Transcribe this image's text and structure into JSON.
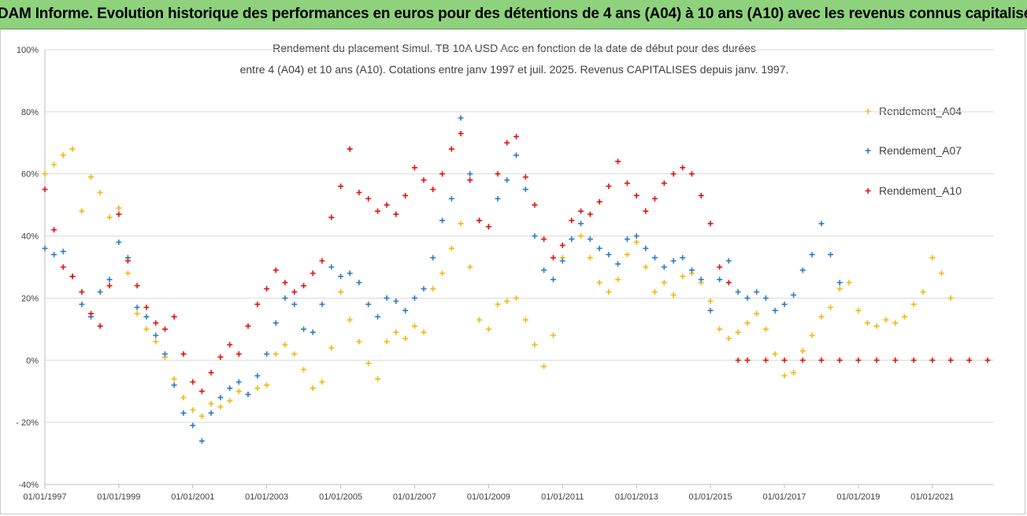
{
  "header": {
    "banner": "ADAM Informe. Evolution historique des performances en euros pour des détentions de 4 ans (A04) à 10 ans (A10) avec les revenus connus capitalisés"
  },
  "chart_data": {
    "type": "scatter",
    "title_line1": "Rendement du placement Simul. TB 10A USD Acc en fonction de la date de début pour des durées",
    "title_line2": "entre 4 (A04) et 10 ans (A10). Cotations entre janv 1997 et juil. 2025. Revenus CAPITALISES depuis janv. 1997.",
    "xlabel": "",
    "ylabel": "",
    "x_ticks": [
      "01/01/1997",
      "01/01/1999",
      "01/01/2001",
      "01/01/2003",
      "01/01/2005",
      "01/01/2007",
      "01/01/2009",
      "01/01/2011",
      "01/01/2013",
      "01/01/2015",
      "01/01/2017",
      "01/01/2019",
      "01/01/2021"
    ],
    "y_ticks": [
      "100%",
      "80%",
      "60%",
      "40%",
      "20%",
      "0%",
      "- 20%",
      "-40%"
    ],
    "xlim": [
      "1997-01-01",
      "2022-09-01"
    ],
    "ylim": [
      -40,
      100
    ],
    "grid": "horizontal",
    "legend_position": "right",
    "marker": "+",
    "series": [
      {
        "name": "Rendement_A04",
        "color": "#f5b70f",
        "points": [
          [
            "1997-01",
            60
          ],
          [
            "1997-04",
            63
          ],
          [
            "1997-07",
            66
          ],
          [
            "1997-10",
            68
          ],
          [
            "1998-01",
            48
          ],
          [
            "1998-04",
            59
          ],
          [
            "1998-07",
            54
          ],
          [
            "1998-10",
            46
          ],
          [
            "1999-01",
            49
          ],
          [
            "1999-04",
            28
          ],
          [
            "1999-07",
            15
          ],
          [
            "1999-10",
            10
          ],
          [
            "2000-01",
            6
          ],
          [
            "2000-04",
            1
          ],
          [
            "2000-07",
            -6
          ],
          [
            "2000-10",
            -12
          ],
          [
            "2001-01",
            -16
          ],
          [
            "2001-04",
            -18
          ],
          [
            "2001-07",
            -14
          ],
          [
            "2001-10",
            -15
          ],
          [
            "2002-01",
            -13
          ],
          [
            "2002-04",
            -10
          ],
          [
            "2002-07",
            -11
          ],
          [
            "2002-10",
            -9
          ],
          [
            "2003-01",
            -8
          ],
          [
            "2003-04",
            2
          ],
          [
            "2003-07",
            5
          ],
          [
            "2003-10",
            2
          ],
          [
            "2004-01",
            -3
          ],
          [
            "2004-04",
            -9
          ],
          [
            "2004-07",
            -7
          ],
          [
            "2004-10",
            4
          ],
          [
            "2005-01",
            22
          ],
          [
            "2005-04",
            13
          ],
          [
            "2005-07",
            6
          ],
          [
            "2005-10",
            -1
          ],
          [
            "2006-01",
            -6
          ],
          [
            "2006-04",
            6
          ],
          [
            "2006-07",
            9
          ],
          [
            "2006-10",
            7
          ],
          [
            "2007-01",
            11
          ],
          [
            "2007-04",
            9
          ],
          [
            "2007-07",
            23
          ],
          [
            "2007-10",
            28
          ],
          [
            "2008-01",
            36
          ],
          [
            "2008-04",
            44
          ],
          [
            "2008-07",
            30
          ],
          [
            "2008-10",
            13
          ],
          [
            "2009-01",
            10
          ],
          [
            "2009-04",
            18
          ],
          [
            "2009-07",
            19
          ],
          [
            "2009-10",
            20
          ],
          [
            "2010-01",
            13
          ],
          [
            "2010-04",
            5
          ],
          [
            "2010-07",
            -2
          ],
          [
            "2010-10",
            8
          ],
          [
            "2011-01",
            33
          ],
          [
            "2011-04",
            39
          ],
          [
            "2011-07",
            40
          ],
          [
            "2011-10",
            33
          ],
          [
            "2012-01",
            25
          ],
          [
            "2012-04",
            22
          ],
          [
            "2012-07",
            26
          ],
          [
            "2012-10",
            34
          ],
          [
            "2013-01",
            38
          ],
          [
            "2013-04",
            30
          ],
          [
            "2013-07",
            22
          ],
          [
            "2013-10",
            25
          ],
          [
            "2014-01",
            21
          ],
          [
            "2014-04",
            27
          ],
          [
            "2014-07",
            28
          ],
          [
            "2014-10",
            25
          ],
          [
            "2015-01",
            19
          ],
          [
            "2015-04",
            10
          ],
          [
            "2015-07",
            7
          ],
          [
            "2015-10",
            9
          ],
          [
            "2016-01",
            12
          ],
          [
            "2016-04",
            15
          ],
          [
            "2016-07",
            10
          ],
          [
            "2016-10",
            2
          ],
          [
            "2017-01",
            -5
          ],
          [
            "2017-04",
            -4
          ],
          [
            "2017-07",
            3
          ],
          [
            "2017-10",
            8
          ],
          [
            "2018-01",
            14
          ],
          [
            "2018-04",
            17
          ],
          [
            "2018-07",
            23
          ],
          [
            "2018-10",
            25
          ],
          [
            "2019-01",
            16
          ],
          [
            "2019-04",
            12
          ],
          [
            "2019-07",
            11
          ],
          [
            "2019-10",
            13
          ],
          [
            "2020-01",
            12
          ],
          [
            "2020-04",
            14
          ],
          [
            "2020-07",
            18
          ],
          [
            "2020-10",
            22
          ],
          [
            "2021-01",
            33
          ],
          [
            "2021-04",
            28
          ],
          [
            "2021-07",
            20
          ]
        ]
      },
      {
        "name": "Rendement_A07",
        "color": "#2e7dc6",
        "points": [
          [
            "1997-01",
            36
          ],
          [
            "1997-04",
            34
          ],
          [
            "1997-07",
            35
          ],
          [
            "1997-10",
            27
          ],
          [
            "1998-01",
            18
          ],
          [
            "1998-04",
            14
          ],
          [
            "1998-07",
            22
          ],
          [
            "1998-10",
            26
          ],
          [
            "1999-01",
            38
          ],
          [
            "1999-04",
            33
          ],
          [
            "1999-07",
            17
          ],
          [
            "1999-10",
            14
          ],
          [
            "2000-01",
            8
          ],
          [
            "2000-04",
            2
          ],
          [
            "2000-07",
            -8
          ],
          [
            "2000-10",
            -17
          ],
          [
            "2001-01",
            -21
          ],
          [
            "2001-04",
            -26
          ],
          [
            "2001-07",
            -17
          ],
          [
            "2001-10",
            -12
          ],
          [
            "2002-01",
            -9
          ],
          [
            "2002-04",
            -7
          ],
          [
            "2002-07",
            -11
          ],
          [
            "2002-10",
            -5
          ],
          [
            "2003-01",
            2
          ],
          [
            "2003-04",
            12
          ],
          [
            "2003-07",
            20
          ],
          [
            "2003-10",
            18
          ],
          [
            "2004-01",
            10
          ],
          [
            "2004-04",
            9
          ],
          [
            "2004-07",
            18
          ],
          [
            "2004-10",
            30
          ],
          [
            "2005-01",
            27
          ],
          [
            "2005-04",
            28
          ],
          [
            "2005-07",
            25
          ],
          [
            "2005-10",
            18
          ],
          [
            "2006-01",
            14
          ],
          [
            "2006-04",
            20
          ],
          [
            "2006-07",
            19
          ],
          [
            "2006-10",
            16
          ],
          [
            "2007-01",
            20
          ],
          [
            "2007-04",
            23
          ],
          [
            "2007-07",
            33
          ],
          [
            "2007-10",
            45
          ],
          [
            "2008-01",
            52
          ],
          [
            "2008-04",
            78
          ],
          [
            "2008-07",
            60
          ],
          [
            "2008-10",
            45
          ],
          [
            "2009-01",
            43
          ],
          [
            "2009-04",
            52
          ],
          [
            "2009-07",
            58
          ],
          [
            "2009-10",
            66
          ],
          [
            "2010-01",
            55
          ],
          [
            "2010-04",
            40
          ],
          [
            "2010-07",
            29
          ],
          [
            "2010-10",
            26
          ],
          [
            "2011-01",
            32
          ],
          [
            "2011-04",
            39
          ],
          [
            "2011-07",
            44
          ],
          [
            "2011-10",
            39
          ],
          [
            "2012-01",
            36
          ],
          [
            "2012-04",
            34
          ],
          [
            "2012-07",
            31
          ],
          [
            "2012-10",
            39
          ],
          [
            "2013-01",
            40
          ],
          [
            "2013-04",
            36
          ],
          [
            "2013-07",
            33
          ],
          [
            "2013-10",
            30
          ],
          [
            "2014-01",
            32
          ],
          [
            "2014-04",
            33
          ],
          [
            "2014-07",
            29
          ],
          [
            "2014-10",
            26
          ],
          [
            "2015-01",
            16
          ],
          [
            "2015-04",
            26
          ],
          [
            "2015-07",
            32
          ],
          [
            "2015-10",
            22
          ],
          [
            "2016-01",
            20
          ],
          [
            "2016-04",
            22
          ],
          [
            "2016-07",
            20
          ],
          [
            "2016-10",
            16
          ],
          [
            "2017-01",
            18
          ],
          [
            "2017-04",
            21
          ],
          [
            "2017-07",
            29
          ],
          [
            "2017-10",
            34
          ],
          [
            "2018-01",
            44
          ],
          [
            "2018-04",
            34
          ],
          [
            "2018-07",
            25
          ]
        ]
      },
      {
        "name": "Rendement_A10",
        "color": "#e01414",
        "points": [
          [
            "1997-01",
            55
          ],
          [
            "1997-04",
            42
          ],
          [
            "1997-07",
            30
          ],
          [
            "1997-10",
            27
          ],
          [
            "1998-01",
            22
          ],
          [
            "1998-04",
            15
          ],
          [
            "1998-07",
            11
          ],
          [
            "1998-10",
            24
          ],
          [
            "1999-01",
            47
          ],
          [
            "1999-04",
            32
          ],
          [
            "1999-07",
            24
          ],
          [
            "1999-10",
            17
          ],
          [
            "2000-01",
            12
          ],
          [
            "2000-04",
            10
          ],
          [
            "2000-07",
            14
          ],
          [
            "2000-10",
            2
          ],
          [
            "2001-01",
            -7
          ],
          [
            "2001-04",
            -10
          ],
          [
            "2001-07",
            -4
          ],
          [
            "2001-10",
            1
          ],
          [
            "2002-01",
            5
          ],
          [
            "2002-04",
            2
          ],
          [
            "2002-07",
            11
          ],
          [
            "2002-10",
            18
          ],
          [
            "2003-01",
            23
          ],
          [
            "2003-04",
            29
          ],
          [
            "2003-07",
            25
          ],
          [
            "2003-10",
            22
          ],
          [
            "2004-01",
            24
          ],
          [
            "2004-04",
            28
          ],
          [
            "2004-07",
            32
          ],
          [
            "2004-10",
            46
          ],
          [
            "2005-01",
            56
          ],
          [
            "2005-04",
            68
          ],
          [
            "2005-07",
            54
          ],
          [
            "2005-10",
            52
          ],
          [
            "2006-01",
            48
          ],
          [
            "2006-04",
            50
          ],
          [
            "2006-07",
            47
          ],
          [
            "2006-10",
            53
          ],
          [
            "2007-01",
            62
          ],
          [
            "2007-04",
            58
          ],
          [
            "2007-07",
            55
          ],
          [
            "2007-10",
            60
          ],
          [
            "2008-01",
            68
          ],
          [
            "2008-04",
            73
          ],
          [
            "2008-07",
            58
          ],
          [
            "2008-10",
            45
          ],
          [
            "2009-01",
            43
          ],
          [
            "2009-04",
            60
          ],
          [
            "2009-07",
            70
          ],
          [
            "2009-10",
            72
          ],
          [
            "2010-01",
            59
          ],
          [
            "2010-04",
            50
          ],
          [
            "2010-07",
            39
          ],
          [
            "2010-10",
            33
          ],
          [
            "2011-01",
            37
          ],
          [
            "2011-04",
            45
          ],
          [
            "2011-07",
            48
          ],
          [
            "2011-10",
            47
          ],
          [
            "2012-01",
            51
          ],
          [
            "2012-04",
            56
          ],
          [
            "2012-07",
            64
          ],
          [
            "2012-10",
            57
          ],
          [
            "2013-01",
            53
          ],
          [
            "2013-04",
            48
          ],
          [
            "2013-07",
            52
          ],
          [
            "2013-10",
            57
          ],
          [
            "2014-01",
            60
          ],
          [
            "2014-04",
            62
          ],
          [
            "2014-07",
            60
          ],
          [
            "2014-10",
            53
          ],
          [
            "2015-01",
            44
          ],
          [
            "2015-04",
            30
          ],
          [
            "2015-07",
            25
          ],
          [
            "2015-10",
            0
          ],
          [
            "2016-01",
            0
          ],
          [
            "2016-07",
            0
          ],
          [
            "2017-01",
            0
          ],
          [
            "2017-07",
            0
          ],
          [
            "2018-01",
            0
          ],
          [
            "2018-07",
            0
          ],
          [
            "2019-01",
            0
          ],
          [
            "2019-07",
            0
          ],
          [
            "2020-01",
            0
          ],
          [
            "2020-07",
            0
          ],
          [
            "2021-01",
            0
          ],
          [
            "2021-07",
            0
          ],
          [
            "2022-01",
            0
          ],
          [
            "2022-07",
            0
          ]
        ]
      }
    ]
  }
}
